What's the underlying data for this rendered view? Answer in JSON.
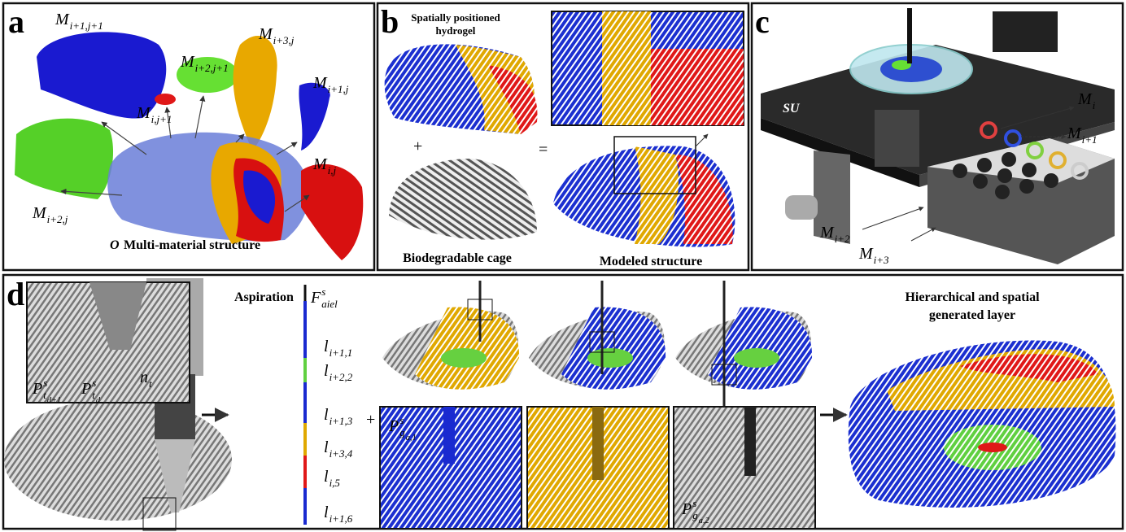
{
  "panel_a": {
    "letter": "a",
    "labels": [
      {
        "base": "M",
        "sub": "i+1,j+1"
      },
      {
        "base": "M",
        "sub": "i+2,j+1"
      },
      {
        "base": "M",
        "sub": "i+3,j"
      },
      {
        "base": "M",
        "sub": "i+1,j"
      },
      {
        "base": "M",
        "sub": "i,j+1"
      },
      {
        "base": "M",
        "sub": "i+2,j"
      },
      {
        "base": "M",
        "sub": "i,j"
      }
    ],
    "caption_symbol": "O",
    "caption": "Multi-material structure"
  },
  "panel_b": {
    "letter": "b",
    "hydrogel_label": [
      "Spatially positioned",
      "hydrogel"
    ],
    "plus": "+",
    "equals": "=",
    "cage_label": "Biodegradable cage",
    "model_label": "Modeled structure"
  },
  "panel_c": {
    "letter": "c",
    "logo": "SU",
    "labels": [
      {
        "base": "M",
        "sub": "i"
      },
      {
        "base": "M",
        "sub": "i+1"
      },
      {
        "base": "M",
        "sub": "i+2"
      },
      {
        "base": "M",
        "sub": "i+3"
      }
    ]
  },
  "panel_d": {
    "letter": "d",
    "aspiration": "Aspiration",
    "force": {
      "base": "F",
      "sup": "s",
      "sub": "aiel"
    },
    "segments": [
      {
        "base": "l",
        "sub": "i+1,1"
      },
      {
        "base": "l",
        "sub": "i+2,2"
      },
      {
        "base": "l",
        "sub": "i+1,3"
      },
      {
        "base": "l",
        "sub": "i+3,4"
      },
      {
        "base": "l",
        "sub": "i,5"
      },
      {
        "base": "l",
        "sub": "i+1,6"
      }
    ],
    "plus": "+",
    "inset_labels": [
      {
        "base": "P",
        "sup": "s",
        "sub": "t",
        "subsub": "d+1"
      },
      {
        "base": "P",
        "sup": "s",
        "sub": "t",
        "subsub": "d"
      },
      {
        "base": "n",
        "sub": "t"
      }
    ],
    "nozzle_labels": [
      {
        "base": "P",
        "sup": "s",
        "sub": "g",
        "subsub": "a,1"
      },
      {
        "base": "P",
        "sup": "s",
        "sub": "g",
        "subsub": "a,2"
      }
    ],
    "result_title": [
      "Hierarchical and spatial",
      "generated layer"
    ]
  }
}
